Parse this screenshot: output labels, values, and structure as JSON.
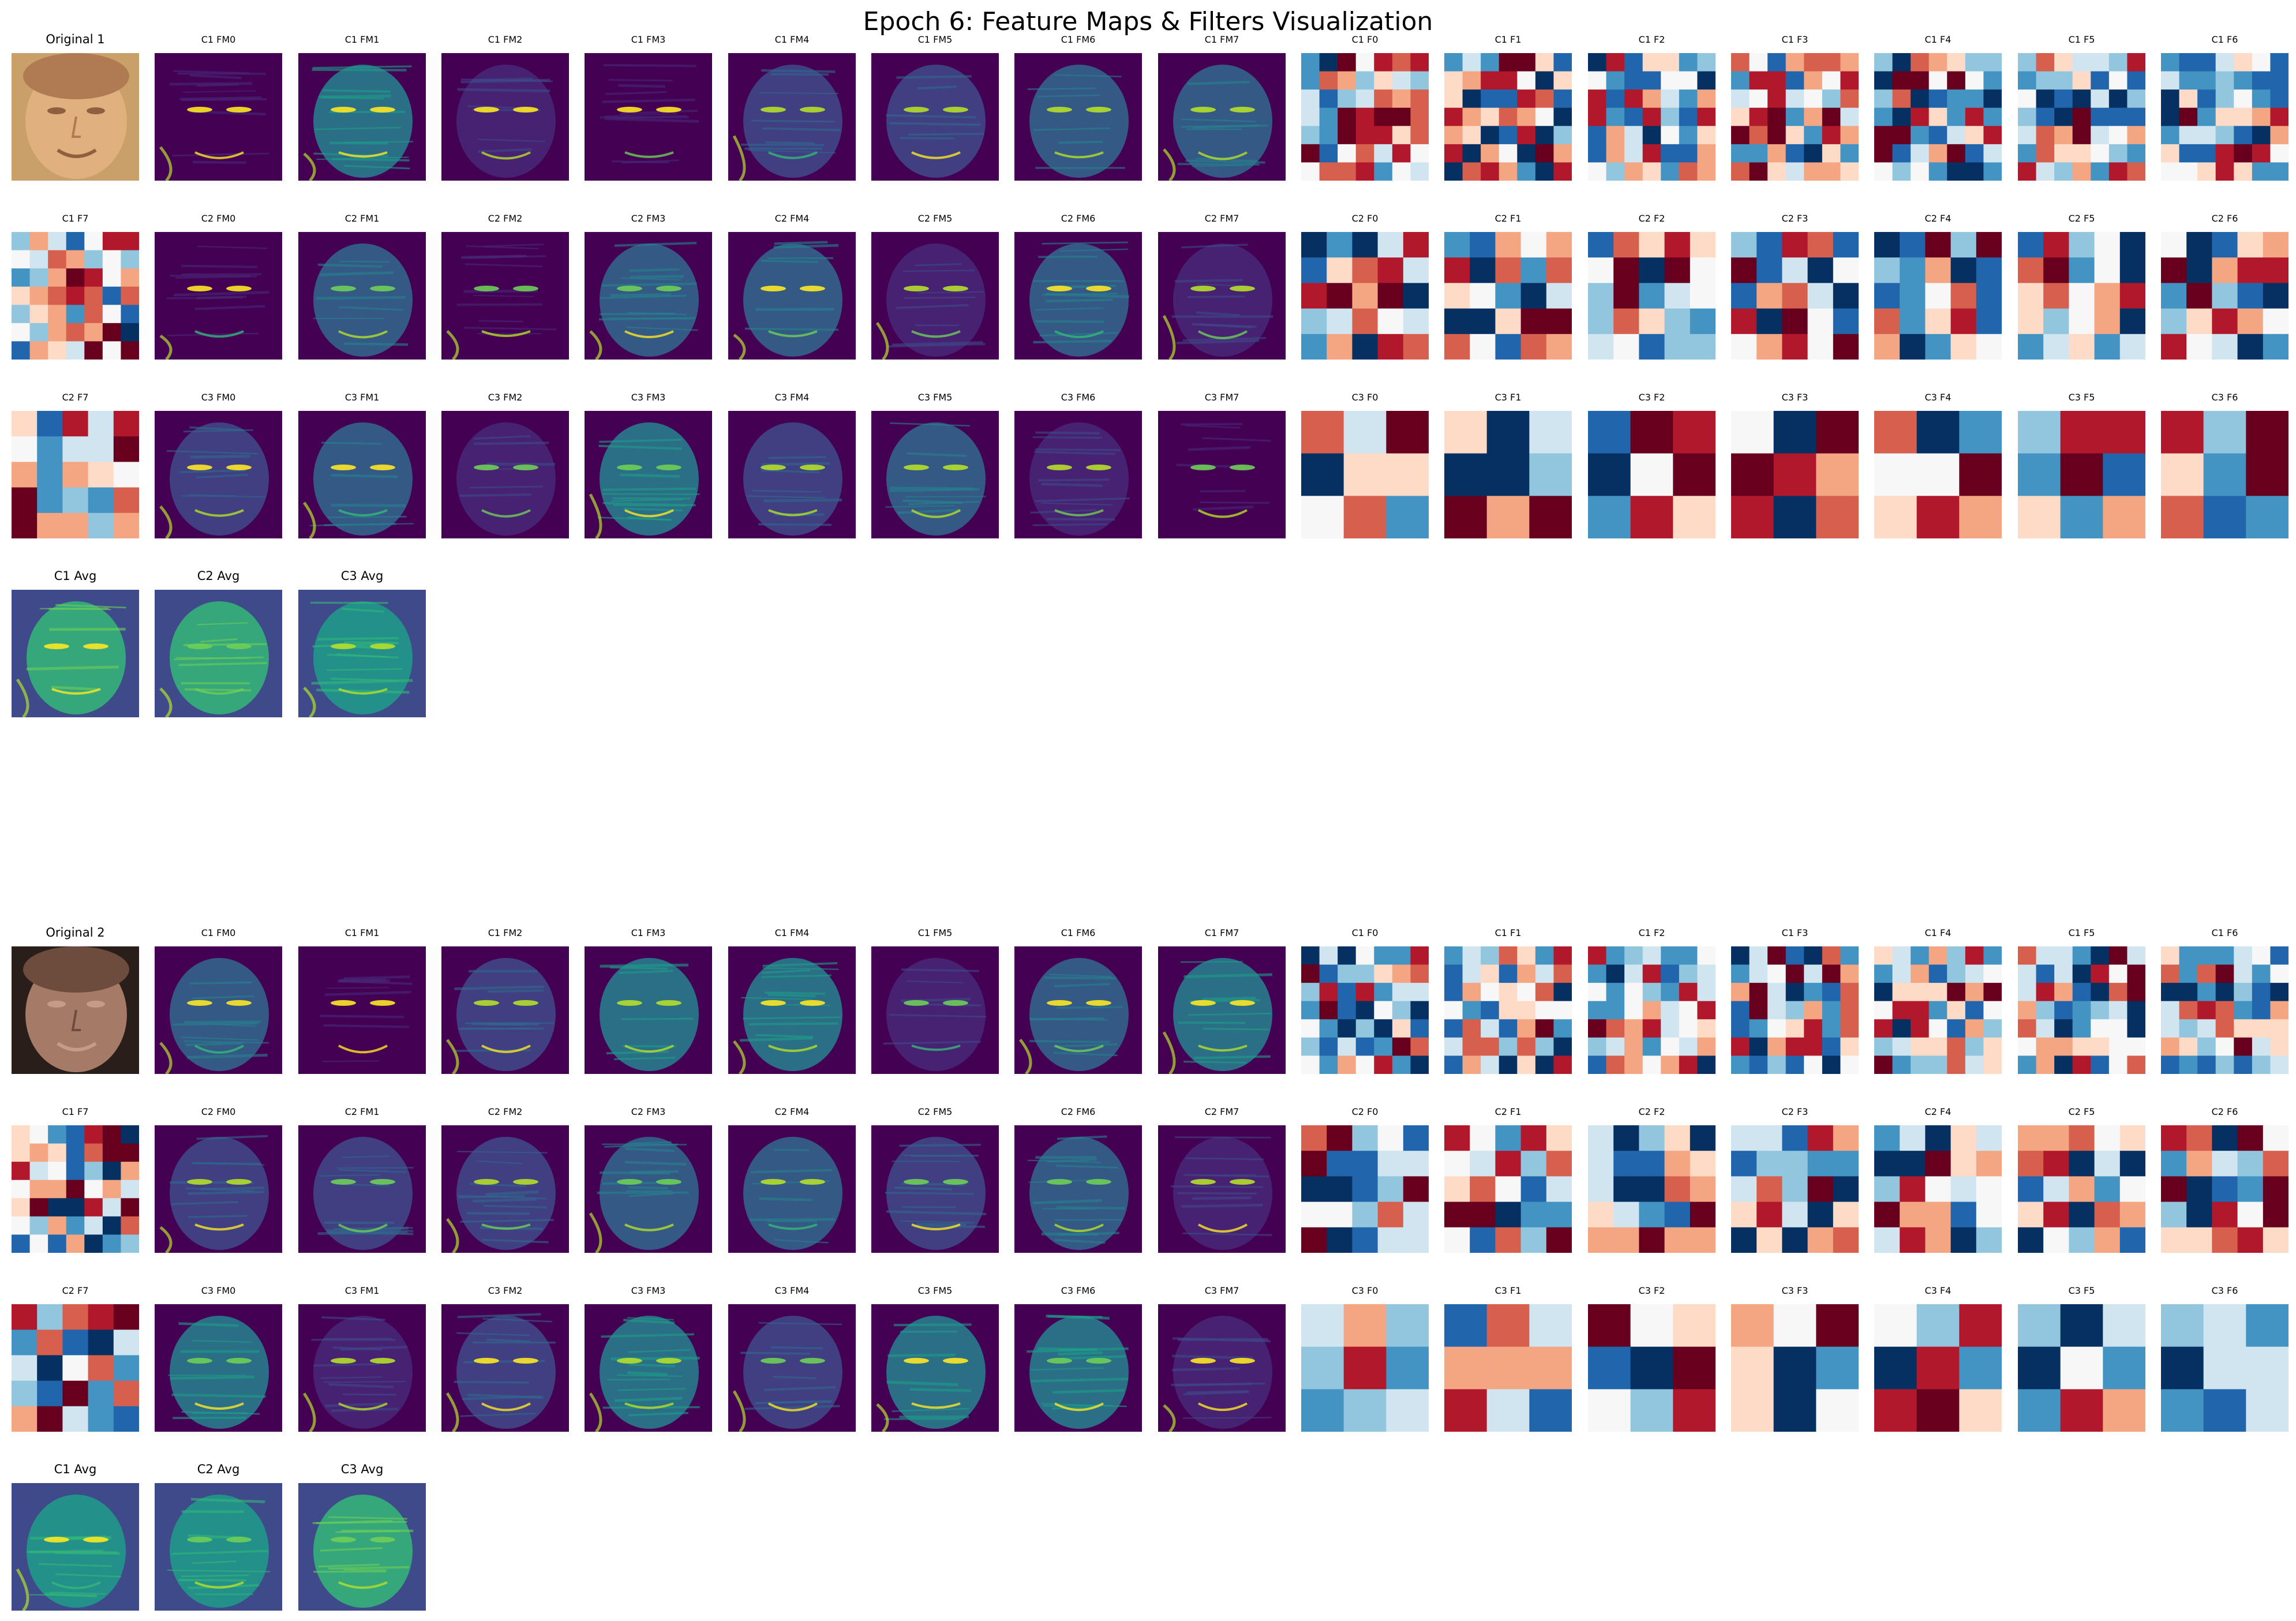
{
  "title": "Epoch 6: Feature Maps & Filters Visualization",
  "colormaps": {
    "viridis": [
      "#440154",
      "#482878",
      "#3e4a89",
      "#31688e",
      "#26828e",
      "#1f9e89",
      "#35b779",
      "#6ece58",
      "#b5de2b",
      "#fde725"
    ],
    "rdbu": [
      "#67001f",
      "#b2182b",
      "#d6604d",
      "#f4a582",
      "#fddbc7",
      "#f7f7f7",
      "#d1e5f0",
      "#92c5de",
      "#4393c3",
      "#2166ac",
      "#053061"
    ],
    "skin_photo_1": [
      "#c9a06a",
      "#b07a52",
      "#e0b07e",
      "#8e6040"
    ],
    "skin_photo_2": [
      "#2a1e1a",
      "#6d4c3e",
      "#a57a66",
      "#c79c86"
    ]
  },
  "sample_1": {
    "rows": [
      [
        "Original 1",
        "C1 FM0",
        "C1 FM1",
        "C1 FM2",
        "C1 FM3",
        "C1 FM4",
        "C1 FM5",
        "C1 FM6",
        "C1 FM7",
        "C1 F0",
        "C1 F1",
        "C1 F2",
        "C1 F3",
        "C1 F4",
        "C1 F5",
        "C1 F6"
      ],
      [
        "C1 F7",
        "C2 FM0",
        "C2 FM1",
        "C2 FM2",
        "C2 FM3",
        "C2 FM4",
        "C2 FM5",
        "C2 FM6",
        "C2 FM7",
        "C2 F0",
        "C2 F1",
        "C2 F2",
        "C2 F3",
        "C2 F4",
        "C2 F5",
        "C2 F6"
      ],
      [
        "C2 F7",
        "C3 FM0",
        "C3 FM1",
        "C3 FM2",
        "C3 FM3",
        "C3 FM4",
        "C3 FM5",
        "C3 FM6",
        "C3 FM7",
        "C3 F0",
        "C3 F1",
        "C3 F2",
        "C3 F3",
        "C3 F4",
        "C3 F5",
        "C3 F6"
      ],
      [
        "C1 Avg",
        "C2 Avg",
        "C3 Avg"
      ]
    ]
  },
  "sample_2": {
    "rows": [
      [
        "Original 2",
        "C1 FM0",
        "C1 FM1",
        "C1 FM2",
        "C1 FM3",
        "C1 FM4",
        "C1 FM5",
        "C1 FM6",
        "C1 FM7",
        "C1 F0",
        "C1 F1",
        "C1 F2",
        "C1 F3",
        "C1 F4",
        "C1 F5",
        "C1 F6"
      ],
      [
        "C1 F7",
        "C2 FM0",
        "C2 FM1",
        "C2 FM2",
        "C2 FM3",
        "C2 FM4",
        "C2 FM5",
        "C2 FM6",
        "C2 FM7",
        "C2 F0",
        "C2 F1",
        "C2 F2",
        "C2 F3",
        "C2 F4",
        "C2 F5",
        "C2 F6"
      ],
      [
        "C2 F7",
        "C3 FM0",
        "C3 FM1",
        "C3 FM2",
        "C3 FM3",
        "C3 FM4",
        "C3 FM5",
        "C3 FM6",
        "C3 FM7",
        "C3 F0",
        "C3 F1",
        "C3 F2",
        "C3 F3",
        "C3 F4",
        "C3 F5",
        "C3 F6"
      ],
      [
        "C1 Avg",
        "C2 Avg",
        "C3 Avg"
      ]
    ]
  }
}
